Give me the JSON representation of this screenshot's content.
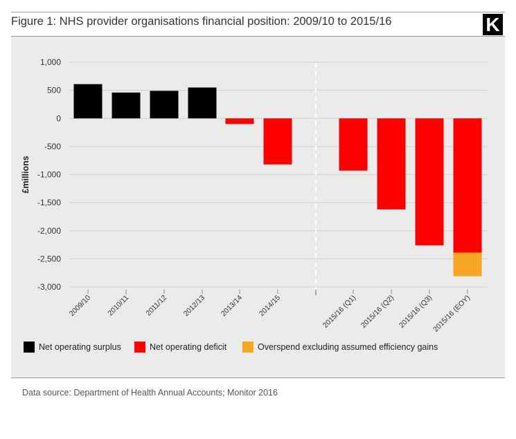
{
  "header": {
    "title": "Figure 1: NHS provider organisations financial position: 2009/10 to 2015/16",
    "logo_letter": "K"
  },
  "footer": {
    "source": "Data source: Department of Health Annual Accounts; Monitor 2016"
  },
  "colors": {
    "surplus": "#000000",
    "deficit": "#ff0000",
    "overspend": "#f5a623",
    "panel_background": "#ebebeb",
    "gridline": "#cfcfcf"
  },
  "chart_data": {
    "type": "bar",
    "title": "Figure 1: NHS provider organisations financial position: 2009/10 to 2015/16",
    "ylabel": "£millions",
    "xlabel": "",
    "ylim": [
      -3000,
      1000
    ],
    "yticks": [
      1000,
      500,
      0,
      -500,
      -1000,
      -1500,
      -2000,
      -2500,
      -3000
    ],
    "ytick_labels": [
      "1,000",
      "500",
      "0",
      "-500",
      "-1,000",
      "-1,500",
      "-2,000",
      "-2,500",
      "-3,000"
    ],
    "grid": true,
    "legend_position": "bottom-left",
    "divider": "dashed vertical line between 2014/15 and 2015/16 (Q1)",
    "categories": [
      "2009/10",
      "2010/11",
      "2011/12",
      "2012/13",
      "2013/14",
      "2014/15",
      "2015/16 (Q1)",
      "2015/16 (Q2)",
      "2015/16 (Q3)",
      "2015/16 (EOY)"
    ],
    "series": [
      {
        "name": "Net operating surplus",
        "color": "#000000",
        "values": [
          610,
          460,
          490,
          550,
          0,
          0,
          0,
          0,
          0,
          0
        ]
      },
      {
        "name": "Net operating deficit",
        "color": "#ff0000",
        "values": [
          0,
          0,
          0,
          0,
          -100,
          -820,
          -930,
          -1620,
          -2260,
          -2390
        ]
      },
      {
        "name": "Overspend excluding assumed efficiency gains",
        "color": "#f5a623",
        "values": [
          0,
          0,
          0,
          0,
          0,
          0,
          0,
          0,
          0,
          -420
        ]
      }
    ]
  }
}
